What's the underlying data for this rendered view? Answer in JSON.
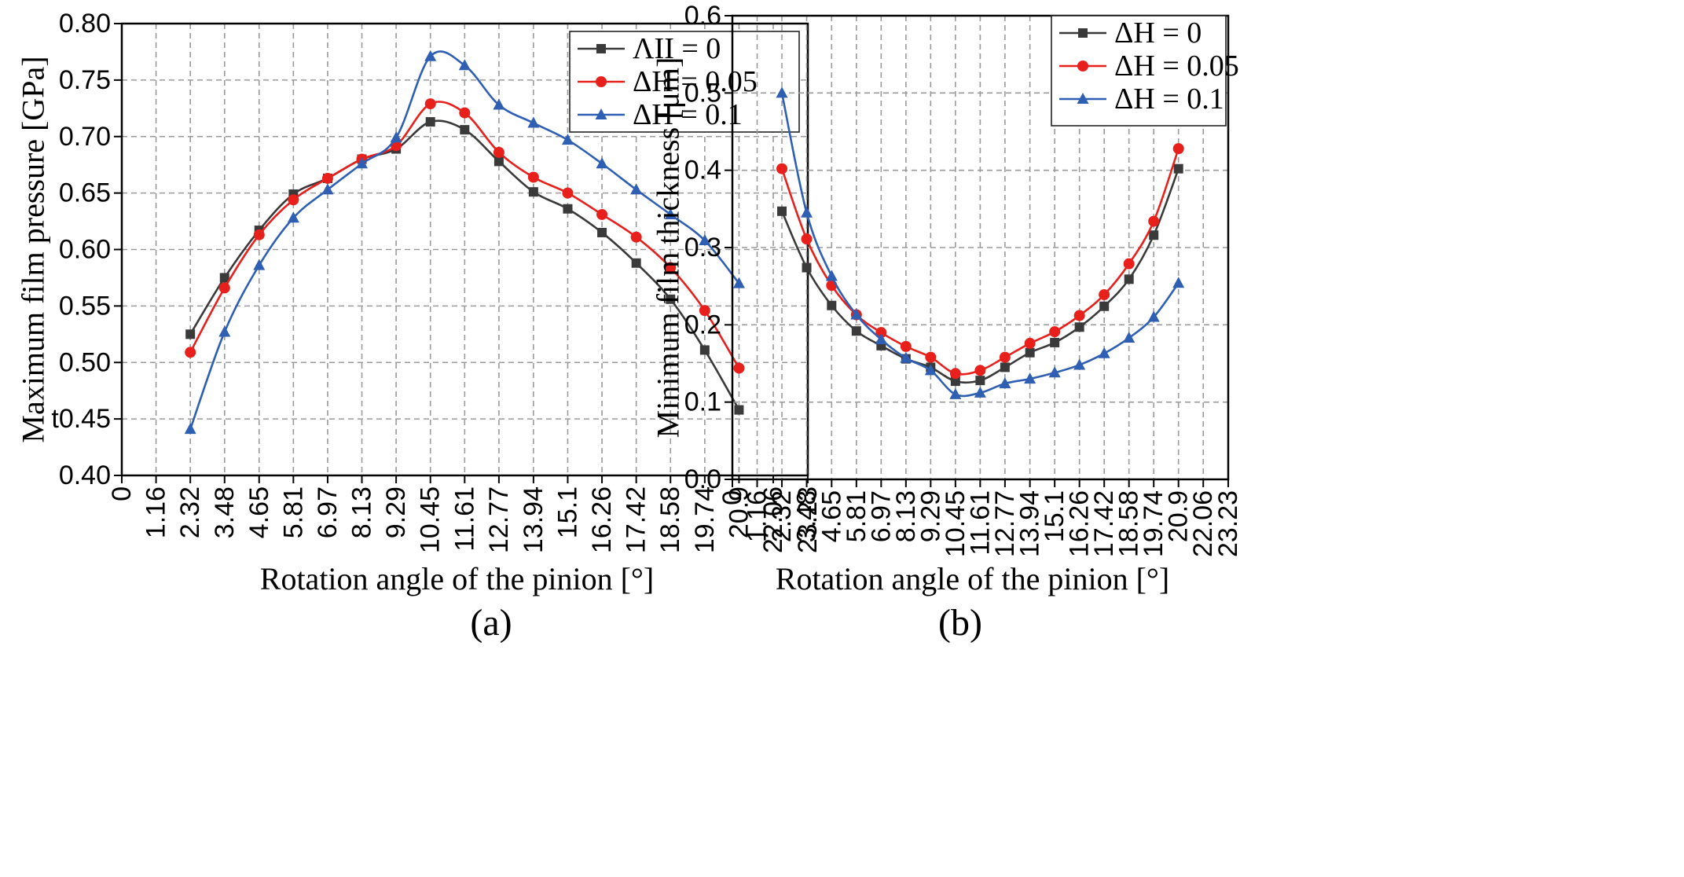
{
  "chart_data": [
    {
      "type": "line",
      "panel_label": "(a)",
      "xlabel": "Rotation angle of the pinion [°]",
      "ylabel": "Maximum  film pressure [GPa]",
      "ylim": [
        0.4,
        0.8
      ],
      "xlim": [
        0,
        23.23
      ],
      "x_ticks": [
        0,
        1.16,
        2.32,
        3.48,
        4.65,
        5.81,
        6.97,
        8.13,
        9.29,
        10.45,
        11.61,
        12.77,
        13.94,
        15.1,
        16.26,
        17.42,
        18.58,
        19.74,
        20.9,
        22.06,
        23.23
      ],
      "x_tick_labels": [
        "0",
        "1.16",
        "2.32",
        "3.48",
        "4.65",
        "5.81",
        "6.97",
        "8.13",
        "9.29",
        "10.45",
        "11.61",
        "12.77",
        "13.94",
        "15.1",
        "16.26",
        "17.42",
        "18.58",
        "19.74",
        "20.9",
        "22.06",
        "23.23"
      ],
      "y_ticks": [
        0.4,
        0.45,
        0.5,
        0.55,
        0.6,
        0.65,
        0.7,
        0.75,
        0.8
      ],
      "y_tick_labels": [
        "0.40",
        "t0.45",
        "0.50",
        "0.55",
        "0.60",
        "0.65",
        "0.70",
        "0.75",
        "0.80"
      ],
      "grid": true,
      "legend_position": "top-right",
      "x": [
        2.32,
        3.48,
        4.65,
        5.81,
        6.97,
        8.13,
        9.29,
        10.45,
        11.61,
        12.77,
        13.94,
        15.1,
        16.26,
        17.42,
        18.58,
        19.74,
        20.9
      ],
      "series": [
        {
          "name": "ΛII = 0",
          "color": "#3a3a3a",
          "marker": "square",
          "values": [
            0.525,
            0.575,
            0.617,
            0.649,
            0.663,
            0.68,
            0.689,
            0.713,
            0.706,
            0.678,
            0.651,
            0.636,
            0.615,
            0.588,
            0.556,
            0.511,
            0.458
          ]
        },
        {
          "name": "ΔH = 0.05",
          "color": "#e8201c",
          "marker": "circle",
          "values": [
            0.509,
            0.566,
            0.613,
            0.644,
            0.663,
            0.68,
            0.692,
            0.729,
            0.721,
            0.686,
            0.664,
            0.65,
            0.631,
            0.611,
            0.584,
            0.546,
            0.495
          ]
        },
        {
          "name": "ΔH = 0.1",
          "color": "#2f5fb3",
          "marker": "triangle",
          "values": [
            0.441,
            0.527,
            0.586,
            0.628,
            0.653,
            0.676,
            0.699,
            0.771,
            0.763,
            0.728,
            0.712,
            0.697,
            0.676,
            0.653,
            0.631,
            0.608,
            0.57
          ]
        }
      ]
    },
    {
      "type": "line",
      "panel_label": "(b)",
      "xlabel": "Rotation angle of the pinion [°]",
      "ylabel": "Minimum film thickness [μm]",
      "ylim": [
        0.0,
        0.6
      ],
      "xlim": [
        0,
        23.23
      ],
      "x_ticks": [
        0,
        1.16,
        2.32,
        3.48,
        4.65,
        5.81,
        6.97,
        8.13,
        9.29,
        10.45,
        11.61,
        12.77,
        13.94,
        15.1,
        16.26,
        17.42,
        18.58,
        19.74,
        20.9,
        22.06,
        23.23
      ],
      "x_tick_labels": [
        "0",
        "1.16",
        "2.32",
        "3.48",
        "4.65",
        "5.81",
        "6.97",
        "8.13",
        "9.29",
        "10.45",
        "11.61",
        "12.77",
        "13.94",
        "15.1",
        "16.26",
        "17.42",
        "18.58",
        "19.74",
        "20.9",
        "22.06",
        "23.23"
      ],
      "y_ticks": [
        0.0,
        0.1,
        0.2,
        0.3,
        0.4,
        0.5,
        0.6
      ],
      "y_tick_labels": [
        "0.0",
        "0.1",
        "0.2",
        "0.3",
        "0.4",
        "0.5",
        "0.6"
      ],
      "grid": true,
      "legend_position": "top-right",
      "x": [
        2.32,
        3.48,
        4.65,
        5.81,
        6.97,
        8.13,
        9.29,
        10.45,
        11.61,
        12.77,
        13.94,
        15.1,
        16.26,
        17.42,
        18.58,
        19.74,
        20.9
      ],
      "series": [
        {
          "name": "ΔH = 0",
          "color": "#3a3a3a",
          "marker": "square",
          "values": [
            0.347,
            0.274,
            0.225,
            0.192,
            0.173,
            0.156,
            0.145,
            0.127,
            0.128,
            0.145,
            0.164,
            0.177,
            0.197,
            0.224,
            0.259,
            0.316,
            0.402
          ]
        },
        {
          "name": "ΔH = 0.05",
          "color": "#e8201c",
          "marker": "circle",
          "values": [
            0.402,
            0.311,
            0.251,
            0.213,
            0.19,
            0.172,
            0.158,
            0.137,
            0.141,
            0.158,
            0.176,
            0.191,
            0.212,
            0.239,
            0.279,
            0.334,
            0.428
          ]
        },
        {
          "name": "ΔH = 0.1",
          "color": "#2f5fb3",
          "marker": "triangle",
          "values": [
            0.5,
            0.345,
            0.263,
            0.213,
            0.181,
            0.157,
            0.141,
            0.11,
            0.112,
            0.124,
            0.13,
            0.138,
            0.148,
            0.163,
            0.183,
            0.21,
            0.254
          ]
        }
      ]
    }
  ]
}
